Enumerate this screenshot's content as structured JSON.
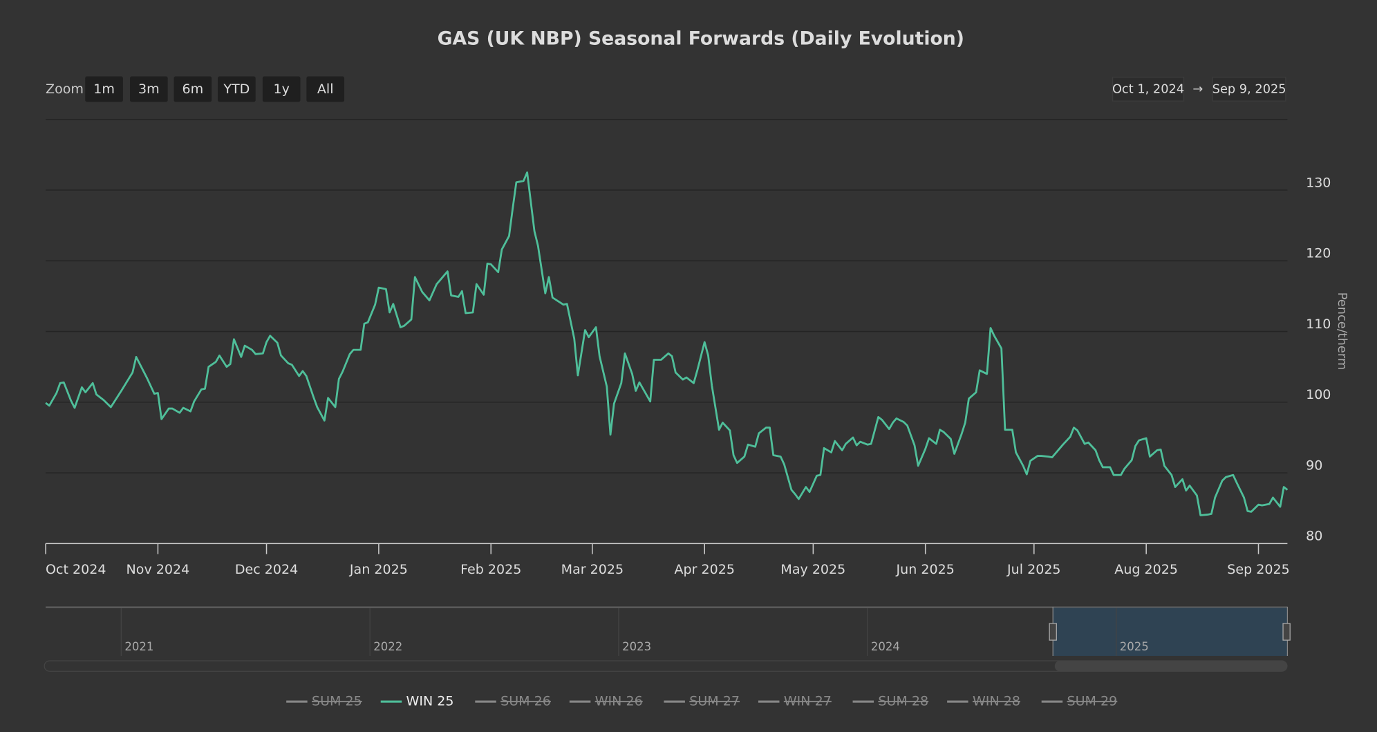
{
  "chart_data": {
    "type": "line",
    "title": "GAS (UK NBP) Seasonal Forwards (Daily Evolution)",
    "y_label": "Pence/therm",
    "range_selector": {
      "label": "Zoom",
      "buttons": [
        "1m",
        "3m",
        "6m",
        "YTD",
        "1y",
        "All"
      ],
      "from": "Oct 1, 2024",
      "separator": "→",
      "to": "Sep 9, 2025"
    },
    "navigator": {
      "labels": [
        "2021",
        "2022",
        "2023",
        "2024",
        "2025"
      ]
    },
    "xlim": [
      "2024-10-01",
      "2025-09-09"
    ],
    "xticks": [
      {
        "value": "2024-10-01",
        "label": "Oct 2024"
      },
      {
        "value": "2024-11-01",
        "label": "Nov 2024"
      },
      {
        "value": "2024-12-01",
        "label": "Dec 2024"
      },
      {
        "value": "2025-01-01",
        "label": "Jan 2025"
      },
      {
        "value": "2025-02-01",
        "label": "Feb 2025"
      },
      {
        "value": "2025-03-01",
        "label": "Mar 2025"
      },
      {
        "value": "2025-04-01",
        "label": "Apr 2025"
      },
      {
        "value": "2025-05-01",
        "label": "May 2025"
      },
      {
        "value": "2025-06-01",
        "label": "Jun 2025"
      },
      {
        "value": "2025-07-01",
        "label": "Jul 2025"
      },
      {
        "value": "2025-08-01",
        "label": "Aug 2025"
      },
      {
        "value": "2025-09-01",
        "label": "Sep 2025"
      }
    ],
    "ylim": [
      80,
      140
    ],
    "yticks": [
      80,
      90,
      100,
      110,
      120,
      130
    ],
    "grid": true,
    "legend_position": "bottom",
    "x": [
      "2024-10-01",
      "2024-10-02",
      "2024-10-04",
      "2024-10-05",
      "2024-10-06",
      "2024-10-08",
      "2024-10-09",
      "2024-10-11",
      "2024-10-12",
      "2024-10-14",
      "2024-10-15",
      "2024-10-17",
      "2024-10-19",
      "2024-10-22",
      "2024-10-25",
      "2024-10-26",
      "2024-10-29",
      "2024-10-31",
      "2024-11-01",
      "2024-11-02",
      "2024-11-04",
      "2024-11-05",
      "2024-11-07",
      "2024-11-08",
      "2024-11-10",
      "2024-11-11",
      "2024-11-13",
      "2024-11-14",
      "2024-11-15",
      "2024-11-17",
      "2024-11-18",
      "2024-11-20",
      "2024-11-21",
      "2024-11-22",
      "2024-11-24",
      "2024-11-25",
      "2024-11-27",
      "2024-11-28",
      "2024-11-30",
      "2024-12-01",
      "2024-12-02",
      "2024-12-04",
      "2024-12-05",
      "2024-12-07",
      "2024-12-08",
      "2024-12-10",
      "2024-12-11",
      "2024-12-12",
      "2024-12-14",
      "2024-12-15",
      "2024-12-17",
      "2024-12-18",
      "2024-12-20",
      "2024-12-21",
      "2024-12-22",
      "2024-12-24",
      "2024-12-25",
      "2024-12-27",
      "2024-12-28",
      "2024-12-29",
      "2024-12-31",
      "2025-01-01",
      "2025-01-03",
      "2025-01-04",
      "2025-01-05",
      "2025-01-07",
      "2025-01-08",
      "2025-01-10",
      "2025-01-11",
      "2025-01-13",
      "2025-01-15",
      "2025-01-17",
      "2025-01-18",
      "2025-01-20",
      "2025-01-21",
      "2025-01-23",
      "2025-01-24",
      "2025-01-25",
      "2025-01-27",
      "2025-01-28",
      "2025-01-30",
      "2025-01-31",
      "2025-02-01",
      "2025-02-03",
      "2025-02-04",
      "2025-02-06",
      "2025-02-07",
      "2025-02-08",
      "2025-02-10",
      "2025-02-11",
      "2025-02-13",
      "2025-02-14",
      "2025-02-16",
      "2025-02-17",
      "2025-02-18",
      "2025-02-21",
      "2025-02-22",
      "2025-02-24",
      "2025-02-25",
      "2025-02-27",
      "2025-02-28",
      "2025-03-02",
      "2025-03-03",
      "2025-03-05",
      "2025-03-06",
      "2025-03-07",
      "2025-03-09",
      "2025-03-10",
      "2025-03-12",
      "2025-03-13",
      "2025-03-14",
      "2025-03-17",
      "2025-03-18",
      "2025-03-20",
      "2025-03-22",
      "2025-03-23",
      "2025-03-24",
      "2025-03-26",
      "2025-03-27",
      "2025-03-29",
      "2025-03-30",
      "2025-04-01",
      "2025-04-02",
      "2025-04-03",
      "2025-04-05",
      "2025-04-06",
      "2025-04-08",
      "2025-04-09",
      "2025-04-10",
      "2025-04-12",
      "2025-04-13",
      "2025-04-15",
      "2025-04-16",
      "2025-04-18",
      "2025-04-19",
      "2025-04-20",
      "2025-04-22",
      "2025-04-23",
      "2025-04-25",
      "2025-04-26",
      "2025-04-27",
      "2025-04-29",
      "2025-04-30",
      "2025-05-02",
      "2025-05-03",
      "2025-05-04",
      "2025-05-06",
      "2025-05-07",
      "2025-05-09",
      "2025-05-10",
      "2025-05-12",
      "2025-05-13",
      "2025-05-14",
      "2025-05-16",
      "2025-05-17",
      "2025-05-19",
      "2025-05-20",
      "2025-05-22",
      "2025-05-23",
      "2025-05-24",
      "2025-05-26",
      "2025-05-27",
      "2025-05-29",
      "2025-05-30",
      "2025-06-01",
      "2025-06-02",
      "2025-06-04",
      "2025-06-05",
      "2025-06-06",
      "2025-06-08",
      "2025-06-09",
      "2025-06-11",
      "2025-06-12",
      "2025-06-13",
      "2025-06-15",
      "2025-06-16",
      "2025-06-18",
      "2025-06-19",
      "2025-06-20",
      "2025-06-22",
      "2025-06-23",
      "2025-06-25",
      "2025-06-26",
      "2025-06-28",
      "2025-06-29",
      "2025-06-30",
      "2025-07-02",
      "2025-07-03",
      "2025-07-05",
      "2025-07-06",
      "2025-07-08",
      "2025-07-09",
      "2025-07-11",
      "2025-07-12",
      "2025-07-13",
      "2025-07-15",
      "2025-07-16",
      "2025-07-18",
      "2025-07-19",
      "2025-07-20",
      "2025-07-22",
      "2025-07-23",
      "2025-07-25",
      "2025-07-26",
      "2025-07-28",
      "2025-07-29",
      "2025-07-30",
      "2025-08-01",
      "2025-08-02",
      "2025-08-04",
      "2025-08-05",
      "2025-08-06",
      "2025-08-08",
      "2025-08-09",
      "2025-08-11",
      "2025-08-12",
      "2025-08-13",
      "2025-08-15",
      "2025-08-16",
      "2025-08-18",
      "2025-08-19",
      "2025-08-20",
      "2025-08-22",
      "2025-08-23",
      "2025-08-25",
      "2025-08-26",
      "2025-08-28",
      "2025-08-29",
      "2025-08-30",
      "2025-09-01",
      "2025-09-02",
      "2025-09-04",
      "2025-09-05",
      "2025-09-07",
      "2025-09-08",
      "2025-09-09"
    ],
    "series": [
      {
        "name": "SUM 25",
        "visible": false
      },
      {
        "name": "WIN 25",
        "visible": true,
        "color": "#4fbf9a",
        "values": [
          99.9,
          99.5,
          101.3,
          102.7,
          102.8,
          100.2,
          99.2,
          102.1,
          101.4,
          102.7,
          101.1,
          100.3,
          99.3,
          101.7,
          104.2,
          106.4,
          103.4,
          101.2,
          101.3,
          97.6,
          99.1,
          99.1,
          98.5,
          99.2,
          98.7,
          100.1,
          101.8,
          101.9,
          105.0,
          105.7,
          106.6,
          105.0,
          105.4,
          108.9,
          106.4,
          108.0,
          107.4,
          106.8,
          106.9,
          108.5,
          109.4,
          108.4,
          106.6,
          105.5,
          105.3,
          103.7,
          104.4,
          103.7,
          100.7,
          99.3,
          97.4,
          100.6,
          99.3,
          103.3,
          104.3,
          106.8,
          107.4,
          107.4,
          111.1,
          111.3,
          113.8,
          116.2,
          116.0,
          112.7,
          113.9,
          110.6,
          110.8,
          111.7,
          117.7,
          115.6,
          114.4,
          116.7,
          117.3,
          118.5,
          115.1,
          114.9,
          115.7,
          112.6,
          112.7,
          116.7,
          115.2,
          119.6,
          119.5,
          118.4,
          121.6,
          123.5,
          127.4,
          131.1,
          131.3,
          132.5,
          124.2,
          122.1,
          115.4,
          117.7,
          114.8,
          113.8,
          113.9,
          109.0,
          103.8,
          110.2,
          109.2,
          110.6,
          106.5,
          102.2,
          95.4,
          99.8,
          102.7,
          106.9,
          104.0,
          101.6,
          102.8,
          100.1,
          106.0,
          106.0,
          106.9,
          106.5,
          104.2,
          103.2,
          103.5,
          102.7,
          104.5,
          108.5,
          106.6,
          102.4,
          96.1,
          97.1,
          96.0,
          92.5,
          91.4,
          92.3,
          94.0,
          93.7,
          95.6,
          96.4,
          96.4,
          92.5,
          92.3,
          91.2,
          87.6,
          87.0,
          86.3,
          88.0,
          87.3,
          89.6,
          89.7,
          93.5,
          92.9,
          94.5,
          93.2,
          94.1,
          95.0,
          93.9,
          94.4,
          94.0,
          94.1,
          97.9,
          97.5,
          96.2,
          97.1,
          97.7,
          97.2,
          96.7,
          93.9,
          91.0,
          93.4,
          94.9,
          94.1,
          96.1,
          95.8,
          94.8,
          92.7,
          95.5,
          97.1,
          100.5,
          101.4,
          104.5,
          104.0,
          110.5,
          109.4,
          107.6,
          96.1,
          96.1,
          92.9,
          91.0,
          89.8,
          91.7,
          92.4,
          92.4,
          92.3,
          92.2,
          93.4,
          94.0,
          95.1,
          96.4,
          96.0,
          94.1,
          94.3,
          93.2,
          91.8,
          90.8,
          90.8,
          89.7,
          89.7,
          90.6,
          91.8,
          93.8,
          94.6,
          94.9,
          92.3,
          93.2,
          93.3,
          91.0,
          89.7,
          88.0,
          89.1,
          87.5,
          88.2,
          86.8,
          84.0,
          84.1,
          84.2,
          86.5,
          88.9,
          89.4,
          89.7,
          88.6,
          86.5,
          84.6,
          84.5,
          85.5,
          85.4,
          85.6,
          86.5,
          85.2,
          88.0,
          87.6
        ]
      },
      {
        "name": "SUM 26",
        "visible": false
      },
      {
        "name": "WIN 26",
        "visible": false
      },
      {
        "name": "SUM 27",
        "visible": false
      },
      {
        "name": "WIN 27",
        "visible": false
      },
      {
        "name": "SUM 28",
        "visible": false
      },
      {
        "name": "WIN 28",
        "visible": false
      },
      {
        "name": "SUM 29",
        "visible": false
      }
    ]
  }
}
